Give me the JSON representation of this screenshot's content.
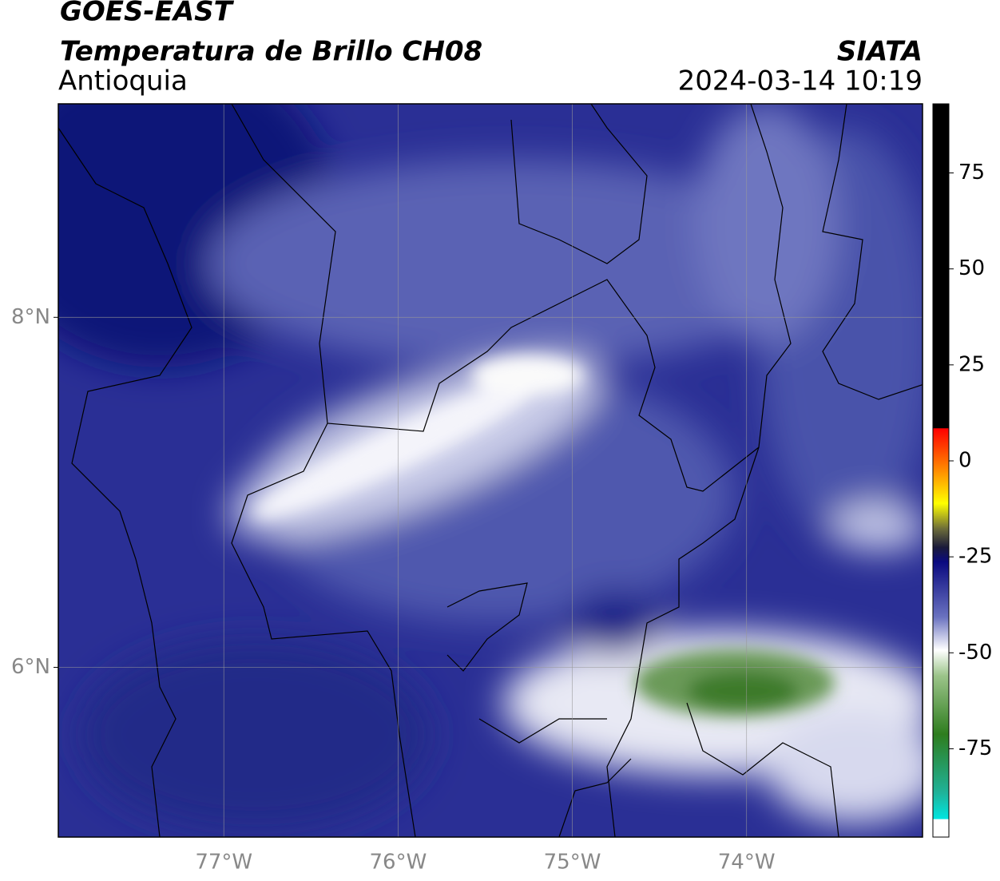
{
  "header": {
    "title": "GOES-EAST",
    "subtitle": "Temperatura de Brillo CH08",
    "region": "Antioquia",
    "source": "SIATA",
    "datetime": "2024-03-14 10:19"
  },
  "map": {
    "xlim": [
      -77.95,
      -72.99
    ],
    "ylim": [
      5.03,
      9.22
    ],
    "grid": true,
    "xticks": [
      {
        "value": -77,
        "label": "77°W"
      },
      {
        "value": -76,
        "label": "76°W"
      },
      {
        "value": -75,
        "label": "75°W"
      },
      {
        "value": -74,
        "label": "74°W"
      }
    ],
    "yticks": [
      {
        "value": 8,
        "label": "8°N"
      },
      {
        "value": 6,
        "label": "6°N"
      }
    ]
  },
  "colorbar": {
    "lim": [
      -98,
      93
    ],
    "ticks": [
      75,
      50,
      25,
      0,
      -25,
      -50,
      -75
    ]
  }
}
